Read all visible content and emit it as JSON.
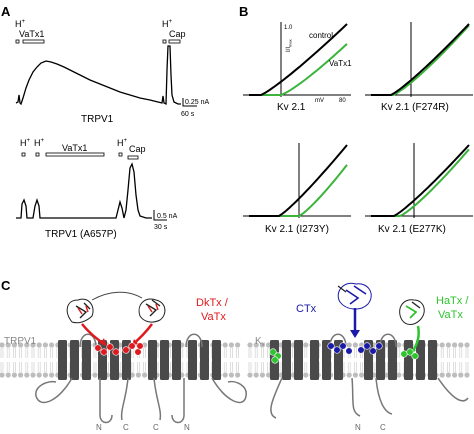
{
  "panel_a": {
    "letter": "A",
    "trace1": {
      "label": "TRPV1",
      "bar_h": "H",
      "bar_h_sup": "+",
      "bar_vatx": "VaTx1",
      "bar_h2": "H",
      "bar_h2_sup": "+",
      "bar_cap": "Cap",
      "scale_y": "0.25 nA",
      "scale_x": "60 s"
    },
    "trace2": {
      "label": "TRPV1 (A657P)",
      "bar_h1": "H",
      "bar_h1_sup": "+",
      "bar_h2": "H",
      "bar_h2_sup": "+",
      "bar_vatx": "VaTx1",
      "bar_h3": "H",
      "bar_h3_sup": "+",
      "bar_cap": "Cap",
      "scale_y": "0.5 nA",
      "scale_x": "30 s"
    }
  },
  "panel_b": {
    "letter": "B",
    "axis_y": "I/I",
    "axis_y_sub": "max",
    "axis_y_top": "1.0",
    "axis_x": "mV",
    "axis_x_right": "80",
    "legend_control": "control",
    "legend_toxin": "VaTx1",
    "plots": [
      {
        "label": "Kv 2.1"
      },
      {
        "label": "Kv 2.1 (F274R)"
      },
      {
        "label": "Kv 2.1 (I273Y)"
      },
      {
        "label": "Kv 2.1 (E277K)"
      }
    ],
    "colors": {
      "control": "#000000",
      "toxin": "#3cb43c"
    }
  },
  "panel_c": {
    "letter": "C",
    "left_channel": "TRPV1",
    "left_toxin_line1": "DkTx /",
    "left_toxin_line2": "VaTx",
    "right_channel": "K",
    "right_channel_sub": "v",
    "ctx_label": "CTx",
    "right_toxin_line1": "HaTx /",
    "right_toxin_line2": "VaTx",
    "n_label": "N",
    "c_label": "C",
    "colors": {
      "dktx": "#e0191e",
      "ctx": "#1a1aa8",
      "hatx": "#2fc42f",
      "helix": "#4a4a4a",
      "membrane": "#bdbdbd"
    }
  }
}
